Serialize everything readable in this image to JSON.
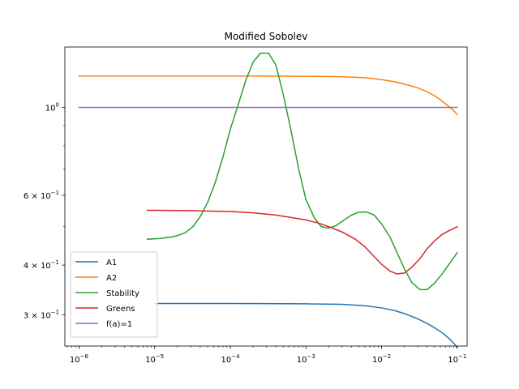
{
  "chart_data": {
    "type": "line",
    "title": "Modified Sobolev",
    "xlabel": "",
    "ylabel": "",
    "xscale": "log",
    "yscale": "log",
    "xlim": [
      6.5e-07,
      0.135
    ],
    "ylim": [
      0.25,
      1.42
    ],
    "grid": false,
    "legend_position": "lower-left",
    "x_ticks": [
      {
        "base": "10",
        "exp": "−6",
        "value": 1e-06
      },
      {
        "base": "10",
        "exp": "−5",
        "value": 1e-05
      },
      {
        "base": "10",
        "exp": "−4",
        "value": 0.0001
      },
      {
        "base": "10",
        "exp": "−3",
        "value": 0.001
      },
      {
        "base": "10",
        "exp": "−2",
        "value": 0.01
      },
      {
        "base": "10",
        "exp": "−1",
        "value": 0.1
      }
    ],
    "y_ticks": [
      {
        "mant": "",
        "base": "10",
        "exp": "0",
        "value": 1.0
      },
      {
        "mant": "6 × ",
        "base": "10",
        "exp": "−1",
        "value": 0.6
      },
      {
        "mant": "4 × ",
        "base": "10",
        "exp": "−1",
        "value": 0.4
      },
      {
        "mant": "3 × ",
        "base": "10",
        "exp": "−1",
        "value": 0.3
      }
    ],
    "y_minor_ticks": [
      0.5,
      0.7,
      0.8,
      0.9
    ],
    "series": [
      {
        "name": "A1",
        "color": "#1f77b4",
        "x": [
          1e-05,
          0.0001,
          0.001,
          0.003,
          0.006,
          0.01,
          0.015,
          0.02,
          0.03,
          0.04,
          0.05,
          0.06,
          0.07,
          0.08,
          0.09,
          0.1
        ],
        "y": [
          0.32,
          0.32,
          0.3195,
          0.3185,
          0.316,
          0.312,
          0.307,
          0.302,
          0.293,
          0.285,
          0.278,
          0.272,
          0.266,
          0.26,
          0.254,
          0.248
        ]
      },
      {
        "name": "A2",
        "color": "#ff7f0e",
        "x": [
          1e-06,
          1e-05,
          0.0001,
          0.001,
          0.003,
          0.006,
          0.01,
          0.015,
          0.02,
          0.03,
          0.04,
          0.05,
          0.06,
          0.07,
          0.08,
          0.09,
          0.1
        ],
        "y": [
          1.2,
          1.2,
          1.2,
          1.198,
          1.195,
          1.188,
          1.175,
          1.16,
          1.145,
          1.12,
          1.095,
          1.07,
          1.045,
          1.02,
          1.0,
          0.98,
          0.96
        ]
      },
      {
        "name": "Stability",
        "color": "#2ca02c",
        "x": [
          8e-06,
          1.2e-05,
          1.8e-05,
          2.5e-05,
          3.2e-05,
          4e-05,
          5e-05,
          6.3e-05,
          8e-05,
          0.0001,
          0.00013,
          0.00016,
          0.0002,
          0.00025,
          0.00032,
          0.0004,
          0.0005,
          0.00063,
          0.0008,
          0.001,
          0.0013,
          0.0016,
          0.002,
          0.0025,
          0.0032,
          0.004,
          0.005,
          0.0063,
          0.008,
          0.01,
          0.013,
          0.016,
          0.02,
          0.025,
          0.032,
          0.04,
          0.05,
          0.063,
          0.08,
          0.1
        ],
        "y": [
          0.465,
          0.467,
          0.472,
          0.482,
          0.5,
          0.53,
          0.575,
          0.645,
          0.75,
          0.88,
          1.03,
          1.17,
          1.3,
          1.37,
          1.37,
          1.28,
          1.08,
          0.88,
          0.7,
          0.585,
          0.525,
          0.5,
          0.496,
          0.503,
          0.52,
          0.535,
          0.544,
          0.545,
          0.535,
          0.508,
          0.47,
          0.43,
          0.392,
          0.362,
          0.347,
          0.347,
          0.36,
          0.38,
          0.405,
          0.43
        ]
      },
      {
        "name": "Greens",
        "color": "#d62728",
        "x": [
          8e-06,
          1e-05,
          3e-05,
          0.0001,
          0.0002,
          0.0004,
          0.0007,
          0.001,
          0.0015,
          0.002,
          0.003,
          0.0045,
          0.006,
          0.008,
          0.01,
          0.013,
          0.016,
          0.02,
          0.025,
          0.032,
          0.04,
          0.05,
          0.063,
          0.08,
          0.1
        ],
        "y": [
          0.55,
          0.55,
          0.549,
          0.546,
          0.542,
          0.535,
          0.526,
          0.52,
          0.51,
          0.5,
          0.485,
          0.465,
          0.445,
          0.42,
          0.402,
          0.386,
          0.38,
          0.382,
          0.395,
          0.415,
          0.44,
          0.46,
          0.478,
          0.49,
          0.5
        ]
      },
      {
        "name": "f(a)=1",
        "color": "#9467bd",
        "x": [
          1e-06,
          0.1
        ],
        "y": [
          1.0,
          1.0
        ]
      }
    ]
  }
}
